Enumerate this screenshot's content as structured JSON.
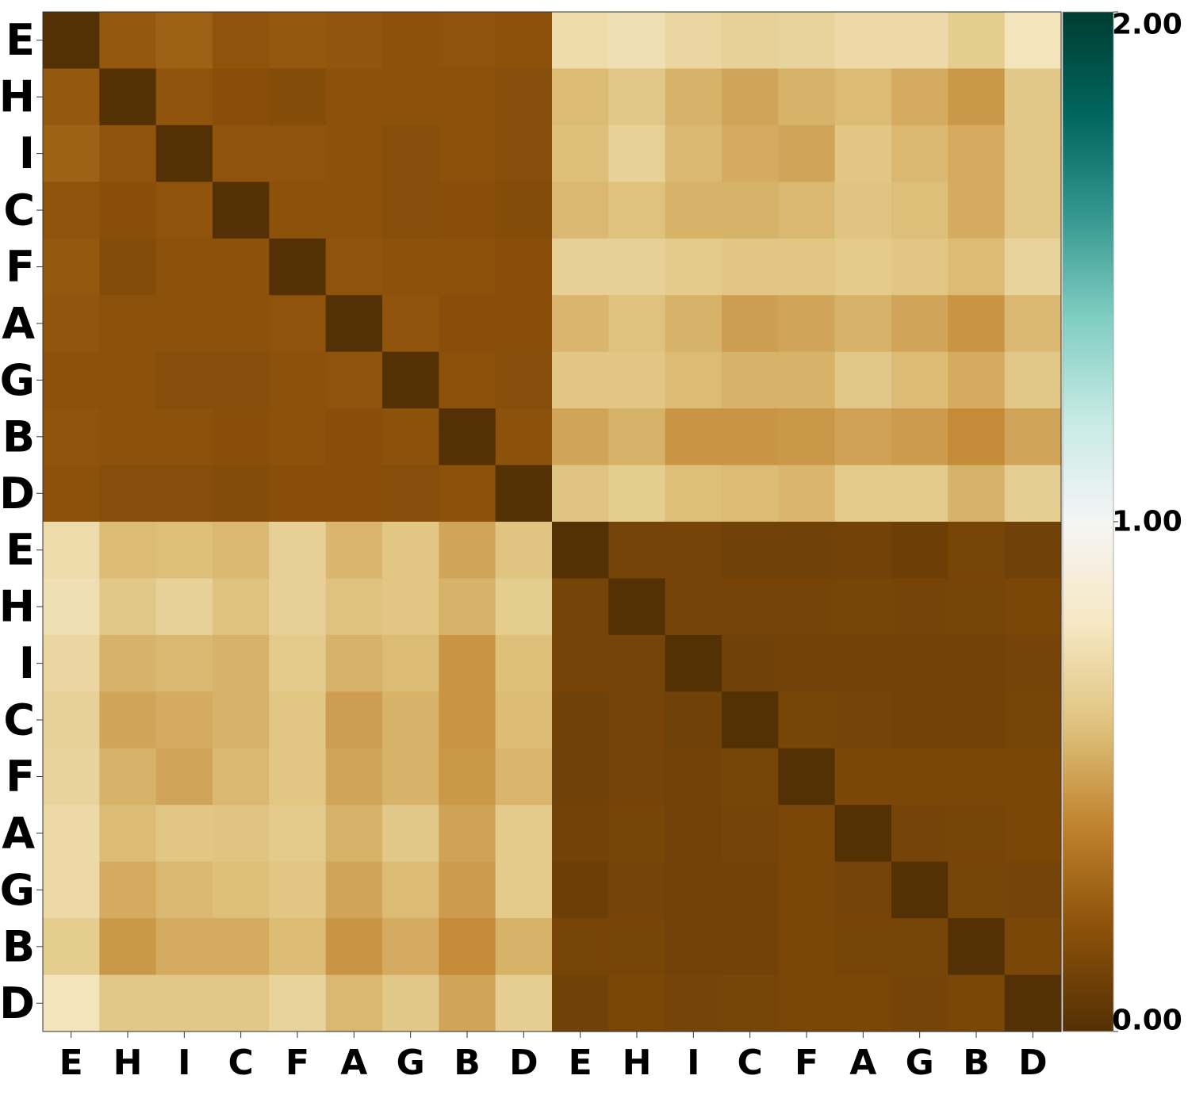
{
  "chart_data": {
    "type": "heatmap",
    "title": "",
    "xlabel": "",
    "ylabel": "",
    "x_labels": [
      "E",
      "H",
      "I",
      "C",
      "F",
      "A",
      "G",
      "B",
      "D",
      "E",
      "H",
      "I",
      "C",
      "F",
      "A",
      "G",
      "B",
      "D"
    ],
    "y_labels": [
      "E",
      "H",
      "I",
      "C",
      "F",
      "A",
      "G",
      "B",
      "D",
      "E",
      "H",
      "I",
      "C",
      "F",
      "A",
      "G",
      "B",
      "D"
    ],
    "colormap": "BrBG",
    "colormap_stops": [
      "#543005",
      "#8c510a",
      "#bf812d",
      "#dfc27d",
      "#f6e8c3",
      "#f5f5f5",
      "#c7eae5",
      "#80cdc1",
      "#35978f",
      "#01665e",
      "#003c30"
    ],
    "vmin": 0,
    "vmax": 2,
    "colorbar": {
      "ticks": [
        0,
        1,
        2
      ],
      "tick_labels": [
        "0.00",
        "1.00",
        "2.00"
      ]
    },
    "values": [
      [
        0.0,
        0.23,
        0.27,
        0.21,
        0.23,
        0.22,
        0.2,
        0.21,
        0.2,
        0.73,
        0.75,
        0.7,
        0.68,
        0.69,
        0.72,
        0.72,
        0.65,
        0.78
      ],
      [
        0.23,
        0.0,
        0.21,
        0.19,
        0.17,
        0.2,
        0.2,
        0.2,
        0.18,
        0.58,
        0.63,
        0.55,
        0.51,
        0.55,
        0.58,
        0.53,
        0.47,
        0.63
      ],
      [
        0.27,
        0.21,
        0.0,
        0.21,
        0.21,
        0.2,
        0.18,
        0.2,
        0.18,
        0.59,
        0.68,
        0.57,
        0.53,
        0.51,
        0.62,
        0.57,
        0.53,
        0.63
      ],
      [
        0.21,
        0.19,
        0.21,
        0.0,
        0.2,
        0.2,
        0.18,
        0.19,
        0.17,
        0.57,
        0.6,
        0.55,
        0.55,
        0.57,
        0.61,
        0.59,
        0.53,
        0.63
      ],
      [
        0.23,
        0.17,
        0.2,
        0.2,
        0.0,
        0.21,
        0.2,
        0.2,
        0.19,
        0.67,
        0.67,
        0.64,
        0.62,
        0.62,
        0.64,
        0.62,
        0.58,
        0.69
      ],
      [
        0.22,
        0.2,
        0.2,
        0.2,
        0.21,
        0.0,
        0.21,
        0.19,
        0.19,
        0.56,
        0.6,
        0.55,
        0.49,
        0.51,
        0.55,
        0.51,
        0.46,
        0.57
      ],
      [
        0.2,
        0.2,
        0.18,
        0.18,
        0.2,
        0.21,
        0.0,
        0.2,
        0.18,
        0.62,
        0.62,
        0.58,
        0.55,
        0.55,
        0.63,
        0.58,
        0.53,
        0.63
      ],
      [
        0.21,
        0.2,
        0.2,
        0.19,
        0.2,
        0.19,
        0.2,
        0.0,
        0.2,
        0.51,
        0.55,
        0.46,
        0.46,
        0.47,
        0.5,
        0.48,
        0.43,
        0.51
      ],
      [
        0.2,
        0.18,
        0.18,
        0.17,
        0.19,
        0.19,
        0.18,
        0.2,
        0.0,
        0.61,
        0.65,
        0.59,
        0.58,
        0.56,
        0.64,
        0.64,
        0.55,
        0.66
      ],
      [
        0.73,
        0.58,
        0.59,
        0.57,
        0.67,
        0.56,
        0.62,
        0.51,
        0.61,
        0.0,
        0.12,
        0.12,
        0.1,
        0.1,
        0.11,
        0.09,
        0.13,
        0.1
      ],
      [
        0.75,
        0.63,
        0.68,
        0.6,
        0.67,
        0.6,
        0.62,
        0.55,
        0.65,
        0.12,
        0.0,
        0.12,
        0.12,
        0.12,
        0.13,
        0.12,
        0.13,
        0.14
      ],
      [
        0.7,
        0.55,
        0.57,
        0.55,
        0.64,
        0.55,
        0.58,
        0.46,
        0.59,
        0.12,
        0.12,
        0.0,
        0.1,
        0.11,
        0.11,
        0.11,
        0.11,
        0.12
      ],
      [
        0.68,
        0.51,
        0.53,
        0.55,
        0.62,
        0.49,
        0.55,
        0.46,
        0.58,
        0.1,
        0.12,
        0.1,
        0.0,
        0.13,
        0.12,
        0.11,
        0.11,
        0.13
      ],
      [
        0.69,
        0.55,
        0.51,
        0.57,
        0.62,
        0.51,
        0.55,
        0.47,
        0.56,
        0.1,
        0.12,
        0.11,
        0.13,
        0.0,
        0.14,
        0.14,
        0.14,
        0.14
      ],
      [
        0.72,
        0.58,
        0.62,
        0.61,
        0.64,
        0.55,
        0.63,
        0.5,
        0.64,
        0.11,
        0.13,
        0.11,
        0.12,
        0.14,
        0.0,
        0.12,
        0.13,
        0.14
      ],
      [
        0.72,
        0.53,
        0.57,
        0.59,
        0.62,
        0.51,
        0.58,
        0.48,
        0.64,
        0.09,
        0.12,
        0.11,
        0.11,
        0.14,
        0.12,
        0.0,
        0.13,
        0.12
      ],
      [
        0.65,
        0.47,
        0.53,
        0.53,
        0.58,
        0.46,
        0.53,
        0.43,
        0.55,
        0.13,
        0.13,
        0.11,
        0.11,
        0.14,
        0.13,
        0.13,
        0.0,
        0.14
      ],
      [
        0.78,
        0.63,
        0.63,
        0.63,
        0.69,
        0.57,
        0.63,
        0.51,
        0.66,
        0.1,
        0.14,
        0.12,
        0.13,
        0.14,
        0.14,
        0.12,
        0.14,
        0.0
      ]
    ]
  }
}
